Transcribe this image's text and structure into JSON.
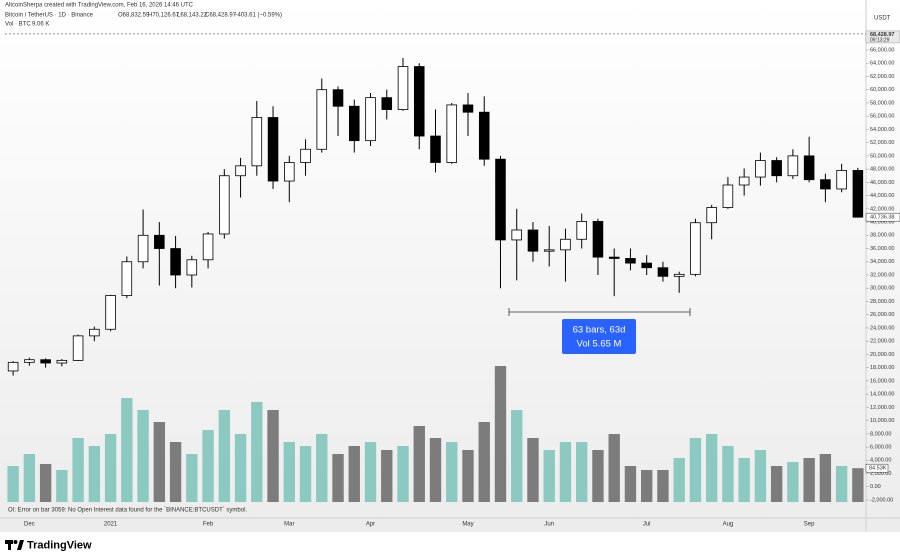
{
  "chart_data": {
    "type": "candlestick",
    "watermark": "AltcoinSherpa created with TradingView.com, Feb 16, 2026 14:46 UTC",
    "title": "Bitcoin / TetherUS · 1D · Binance",
    "legend_ohlc": [
      "O68,832.59",
      "H70,126.67",
      "L68,143.22",
      "C68,428.97",
      "−403.61 (−0.59%)"
    ],
    "volume_legend": "Vol · BTC",
    "volume_legend_value": "9.06 K",
    "currency": "USDT",
    "categories": [
      null,
      "Dec",
      null,
      null,
      null,
      null,
      "2021",
      null,
      null,
      null,
      null,
      null,
      "Feb",
      null,
      null,
      null,
      null,
      "Mar",
      null,
      null,
      null,
      null,
      "Apr",
      null,
      null,
      null,
      null,
      null,
      "May",
      null,
      null,
      null,
      null,
      "Jun",
      null,
      null,
      null,
      null,
      null,
      "Jul",
      null,
      null,
      null,
      null,
      "Aug",
      null,
      null,
      null,
      null,
      "Sep",
      null,
      null,
      null
    ],
    "open": [
      17500,
      18800,
      19200,
      18700,
      19100,
      22800,
      23800,
      28900,
      34000,
      38000,
      36000,
      32000,
      34300,
      38200,
      47000,
      48500,
      55800,
      46200,
      49000,
      51000,
      60000,
      57500,
      52300,
      58800,
      57000,
      63500,
      53000,
      49000,
      57700,
      56600,
      49500,
      37300,
      38800,
      35600,
      35800,
      37400,
      40100,
      34700,
      34500,
      33800,
      33100,
      31800,
      32100,
      39900,
      42200,
      45600,
      46800,
      49300,
      47000,
      50000,
      46400,
      45000,
      47800
    ],
    "high": [
      19000,
      19500,
      19400,
      19300,
      23000,
      24200,
      29000,
      34800,
      41900,
      40000,
      37900,
      34900,
      38500,
      48000,
      49700,
      58300,
      57500,
      50000,
      52500,
      61700,
      60500,
      58500,
      59500,
      60000,
      64800,
      64000,
      57000,
      58000,
      59500,
      59000,
      50000,
      42000,
      40000,
      39400,
      39000,
      41300,
      40500,
      36000,
      36000,
      35000,
      34000,
      32500,
      40500,
      42600,
      46800,
      48100,
      50500,
      49800,
      51000,
      52900,
      47300,
      48800,
      48200
    ],
    "low": [
      16800,
      18300,
      18000,
      18200,
      19000,
      22000,
      23500,
      28500,
      33000,
      30400,
      30000,
      30100,
      33000,
      37500,
      43700,
      47000,
      45000,
      43000,
      47000,
      50500,
      53000,
      50500,
      51500,
      55500,
      56800,
      51000,
      47500,
      48800,
      53000,
      48500,
      30000,
      31200,
      34000,
      33300,
      31000,
      36000,
      32000,
      28800,
      32700,
      32000,
      31000,
      29300,
      31800,
      37400,
      42000,
      44000,
      45500,
      46000,
      46500,
      46000,
      43000,
      44500,
      40700
    ],
    "close": [
      18800,
      19200,
      18700,
      19100,
      22800,
      23800,
      28900,
      34000,
      38000,
      36000,
      32000,
      34300,
      38200,
      47000,
      48500,
      55800,
      46200,
      49000,
      51000,
      60000,
      57500,
      52300,
      58800,
      57000,
      63500,
      53000,
      49000,
      57700,
      56600,
      49500,
      37300,
      38800,
      35600,
      35800,
      37400,
      40100,
      34700,
      34500,
      33800,
      33100,
      31800,
      32100,
      39900,
      42200,
      45600,
      46800,
      49300,
      47000,
      50000,
      46400,
      45000,
      47800,
      40736.38
    ],
    "volume": [
      90000,
      120000,
      95000,
      80000,
      160000,
      140000,
      170000,
      260000,
      230000,
      200000,
      150000,
      120000,
      180000,
      230000,
      170000,
      250000,
      230000,
      150000,
      140000,
      170000,
      120000,
      140000,
      150000,
      130000,
      140000,
      190000,
      160000,
      150000,
      130000,
      200000,
      340000,
      230000,
      160000,
      130000,
      150000,
      150000,
      130000,
      170000,
      90000,
      80000,
      80000,
      110000,
      160000,
      170000,
      140000,
      110000,
      130000,
      90000,
      100000,
      110000,
      120000,
      90000,
      84530
    ],
    "up_color": "#ffffff",
    "down_color": "#000000",
    "volume_up_color": "#8cc9c1",
    "volume_down_color": "#7c7c7c",
    "ylim": [
      -4720,
      71440
    ],
    "volume_lim": [
      0,
      400000
    ],
    "yticks": [
      {
        "value": 66000,
        "label": "66,000.00"
      },
      {
        "value": 64000,
        "label": "64,000.00"
      },
      {
        "value": 62000,
        "label": "62,000.00"
      },
      {
        "value": 60000,
        "label": "60,000.00"
      },
      {
        "value": 58000,
        "label": "58,000.00"
      },
      {
        "value": 56000,
        "label": "56,000.00"
      },
      {
        "value": 54000,
        "label": "54,000.00"
      },
      {
        "value": 52000,
        "label": "52,000.00"
      },
      {
        "value": 50000,
        "label": "50,000.00"
      },
      {
        "value": 48000,
        "label": "48,000.00"
      },
      {
        "value": 46000,
        "label": "46,000.00"
      },
      {
        "value": 44000,
        "label": "44,000.00"
      },
      {
        "value": 42000,
        "label": "42,000.00"
      },
      {
        "value": 40000,
        "label": "40,000.00"
      },
      {
        "value": 38000,
        "label": "38,000.00"
      },
      {
        "value": 36000,
        "label": "36,000.00"
      },
      {
        "value": 34000,
        "label": "34,000.00"
      },
      {
        "value": 32000,
        "label": "32,000.00"
      },
      {
        "value": 30000,
        "label": "30,000.00"
      },
      {
        "value": 28000,
        "label": "28,000.00"
      },
      {
        "value": 26000,
        "label": "26,000.00"
      },
      {
        "value": 24000,
        "label": "24,000.00"
      },
      {
        "value": 22000,
        "label": "22,000.00"
      },
      {
        "value": 20000,
        "label": "20,000.00"
      },
      {
        "value": 18000,
        "label": "18,000.00"
      },
      {
        "value": 16000,
        "label": "16,000.00"
      },
      {
        "value": 14000,
        "label": "14,000.00"
      },
      {
        "value": 12000,
        "label": "12,000.00"
      },
      {
        "value": 10000,
        "label": "10,000.00"
      },
      {
        "value": 8000,
        "label": "8,000.00"
      },
      {
        "value": 6000,
        "label": "6,000.00"
      },
      {
        "value": 4000,
        "label": "4,000.00"
      },
      {
        "value": 2000,
        "label": "2,000.00"
      },
      {
        "value": 0,
        "label": "0.00"
      },
      {
        "value": -2000,
        "label": "-2,000.00"
      }
    ],
    "grid": false,
    "last_price": {
      "value": 68428.97,
      "label": "68,428.97"
    },
    "countdown": "09:13:29",
    "close_label": {
      "value": 40736.38,
      "label": "40,736.38"
    },
    "volume_label": {
      "value": 84530,
      "label": "84.53K"
    },
    "annotations": [
      "63 bars, 63d",
      "Vol 5.65 M"
    ],
    "status": "OI: Error on bar 3059: No Open Interest data found for the `BINANCE:BTCUSDT` symbol.",
    "brand": "TradingView"
  }
}
